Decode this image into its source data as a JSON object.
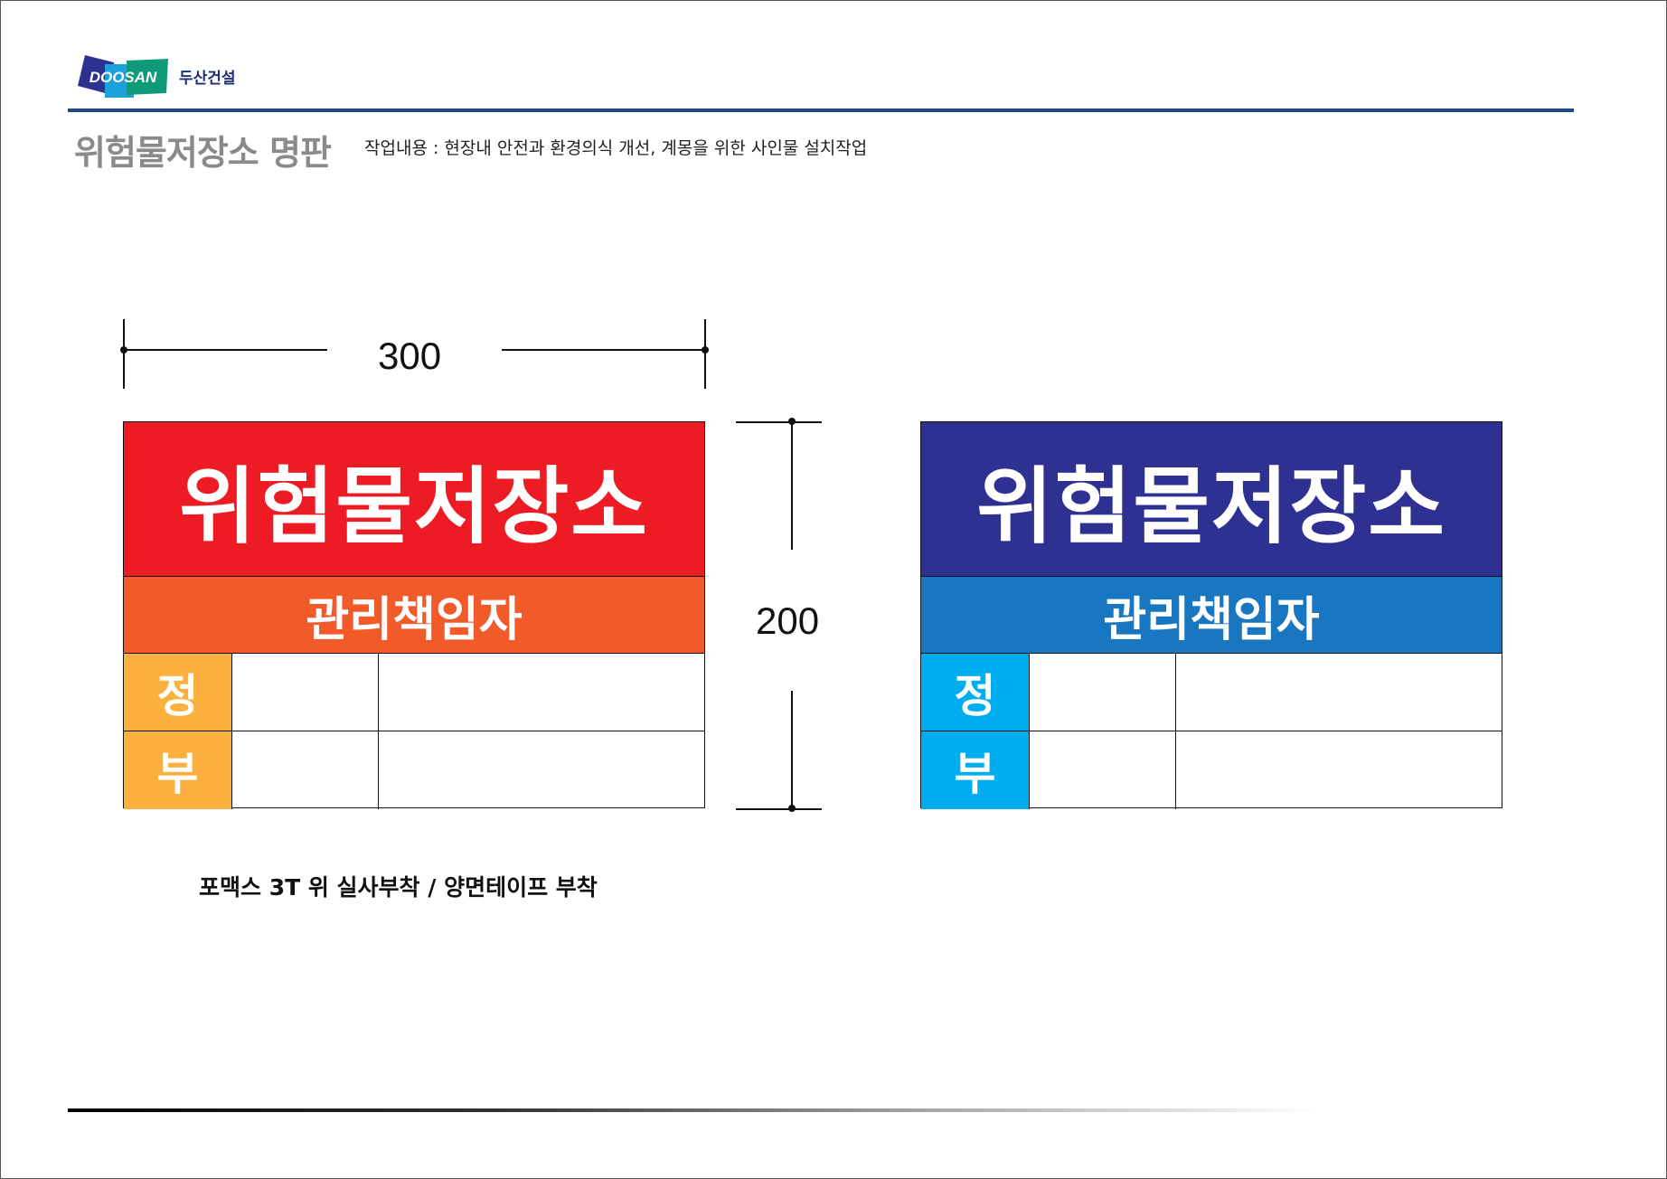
{
  "header": {
    "logo_text": "DOOSAN",
    "company": "두산건설",
    "title": "위험물저장소 명판",
    "subtitle": "작업내용 : 현장내 안전과 환경의식 개선, 계몽을 위한 사인물 설치작업"
  },
  "dimensions": {
    "width": "300",
    "height": "200"
  },
  "signs": [
    {
      "title": "위험물저장소",
      "subtitle": "관리책임자",
      "row_labels": [
        "정",
        "부"
      ],
      "colors": {
        "head": "#ed1c24",
        "sub": "#f15a29",
        "label": "#fbb040"
      }
    },
    {
      "title": "위험물저장소",
      "subtitle": "관리책임자",
      "row_labels": [
        "정",
        "부"
      ],
      "colors": {
        "head": "#2e3192",
        "sub": "#1877c0",
        "label": "#00aeef"
      }
    }
  ],
  "note": "포맥스 3T 위 실사부착 / 양면테이프 부착"
}
